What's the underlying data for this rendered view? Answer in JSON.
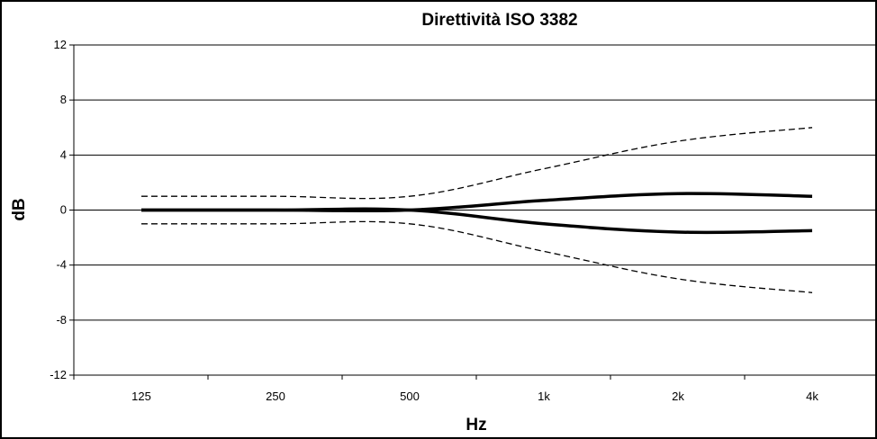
{
  "chart_data": {
    "type": "line",
    "title": "Direttività ISO 3382",
    "xlabel": "Hz",
    "ylabel": "dB",
    "categories": [
      "125",
      "250",
      "500",
      "1k",
      "2k",
      "4k"
    ],
    "ylim": [
      -12,
      12
    ],
    "yticks": [
      12,
      8,
      4,
      0,
      -4,
      -8,
      -12
    ],
    "grid": "horizontal",
    "series": [
      {
        "style": "dashed",
        "color": "#000000",
        "values": [
          1,
          1,
          1,
          3,
          5,
          6
        ]
      },
      {
        "style": "solid-thick",
        "color": "#000000",
        "values": [
          0,
          0,
          0,
          0.7,
          1.2,
          1
        ]
      },
      {
        "style": "solid-thick",
        "color": "#000000",
        "values": [
          0,
          0,
          0,
          -1,
          -1.6,
          -1.5
        ]
      },
      {
        "style": "dashed",
        "color": "#000000",
        "values": [
          -1,
          -1,
          -1,
          -3,
          -5,
          -6
        ]
      }
    ]
  }
}
